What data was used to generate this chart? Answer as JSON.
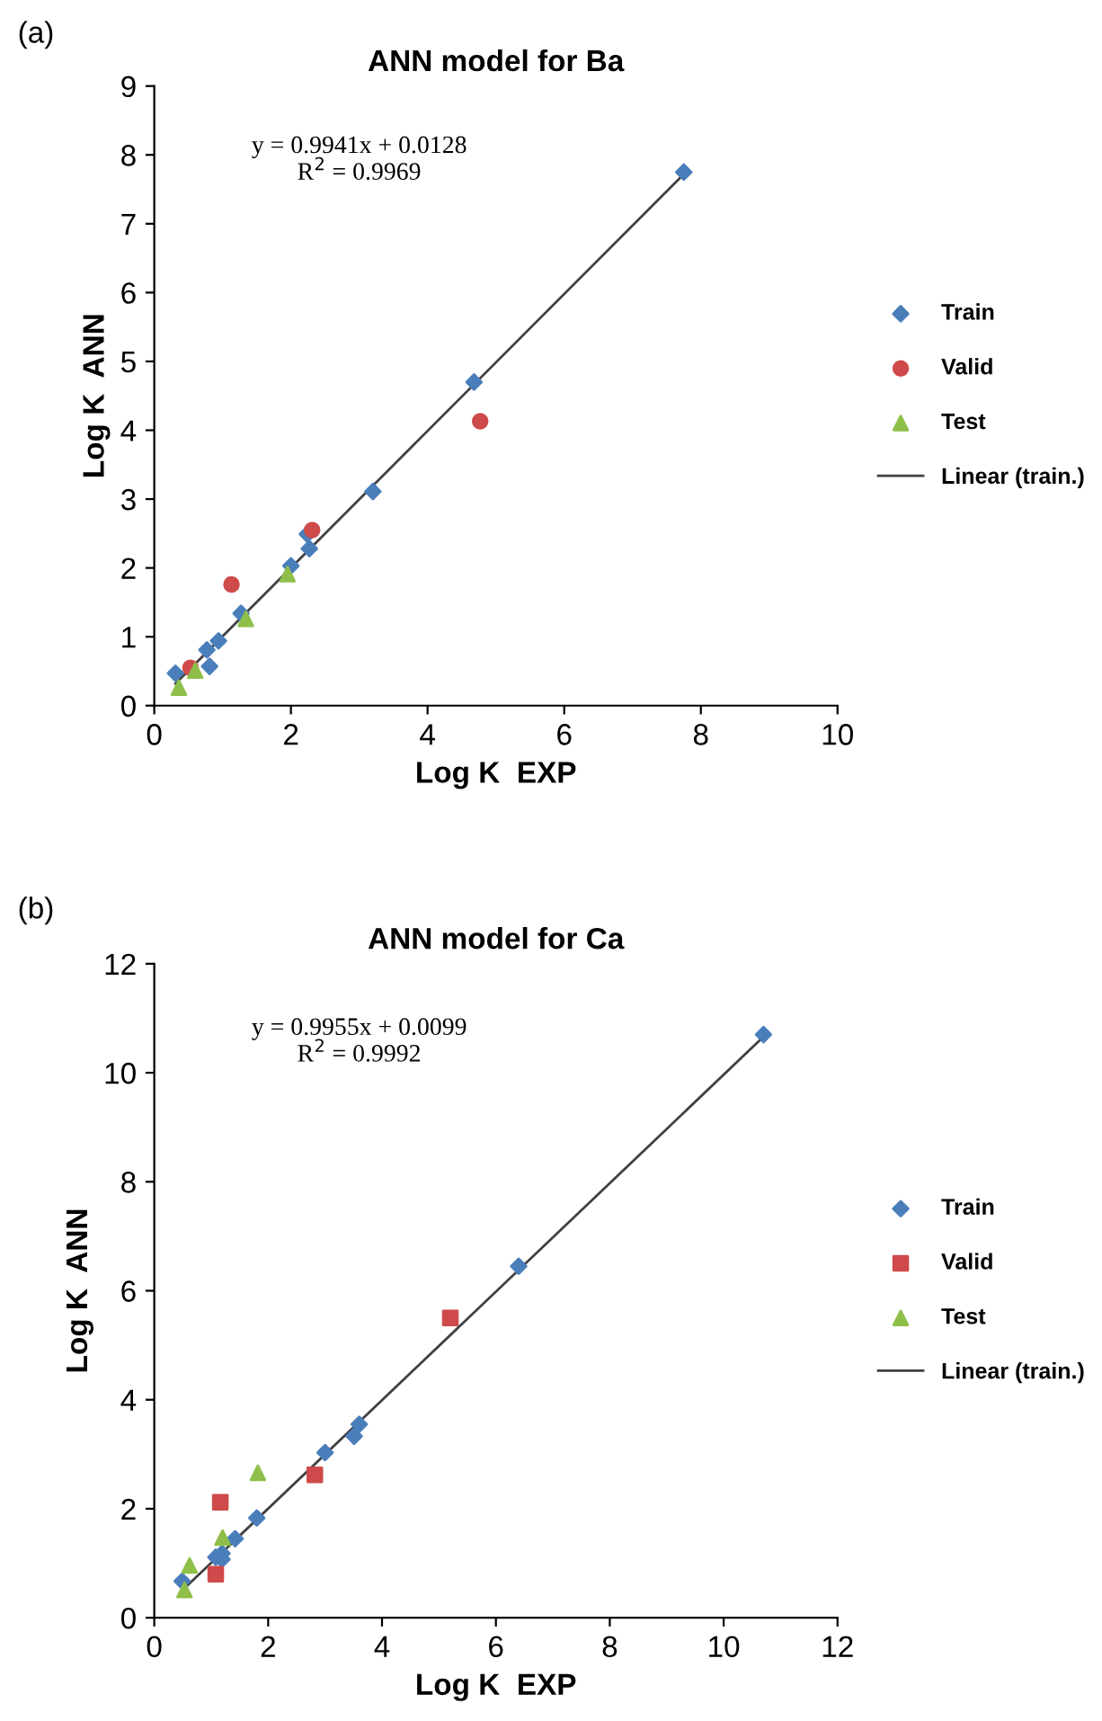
{
  "chart_data": [
    {
      "type": "scatter",
      "title": "ANN model for Ba",
      "xlabel": "Log K  EXP",
      "ylabel": "Log K  ANN",
      "annotations": [
        "(a)",
        "y = 0.9941x + 0.0128\nR$^{2}$ = 0.9969"
      ],
      "xlim": [
        0,
        10
      ],
      "xticks": [
        0,
        2,
        4,
        6,
        8,
        10
      ],
      "ylim": [
        0,
        9
      ],
      "yticks": [
        0,
        1,
        2,
        3,
        4,
        5,
        6,
        7,
        8,
        9
      ],
      "grid": false,
      "legend": "right",
      "series": [
        {
          "name": "Train",
          "type": "scatter",
          "marker": "diamond",
          "color": "#4a7ebb",
          "x": [
            0.31,
            0.77,
            0.81,
            0.94,
            1.27,
            2.0,
            2.24,
            2.27,
            3.2,
            4.68,
            7.75
          ],
          "values": [
            0.47,
            0.81,
            0.57,
            0.94,
            1.34,
            2.03,
            2.49,
            2.28,
            3.11,
            4.7,
            7.75
          ]
        },
        {
          "name": "Valid",
          "type": "scatter",
          "marker": "circle",
          "color": "#cf4a4a",
          "x": [
            0.53,
            1.13,
            2.31,
            4.77
          ],
          "values": [
            0.55,
            1.76,
            2.55,
            4.13
          ]
        },
        {
          "name": "Test",
          "type": "scatter",
          "marker": "triangle",
          "color": "#8fbf4a",
          "x": [
            0.36,
            0.6,
            1.34,
            1.95
          ],
          "values": [
            0.26,
            0.51,
            1.26,
            1.91
          ]
        },
        {
          "name": "Linear (train.)",
          "type": "line",
          "marker": "none",
          "color": "#404040",
          "x": [
            0.31,
            7.75
          ],
          "values": [
            0.32,
            7.72
          ]
        }
      ]
    },
    {
      "type": "scatter",
      "title": "ANN model for Ca",
      "xlabel": "Log K  EXP",
      "ylabel": "Log K  ANN",
      "annotations": [
        "(b)",
        "y = 0.9955x + 0.0099\nR$^{2}$ = 0.9992"
      ],
      "xlim": [
        0,
        12
      ],
      "xticks": [
        0,
        2,
        4,
        6,
        8,
        10,
        12
      ],
      "ylim": [
        0,
        12
      ],
      "yticks": [
        0,
        2,
        4,
        6,
        8,
        10,
        12
      ],
      "grid": false,
      "legend": "right",
      "series": [
        {
          "name": "Train",
          "type": "scatter",
          "marker": "diamond",
          "color": "#4a7ebb",
          "x": [
            0.49,
            1.08,
            1.19,
            1.19,
            1.42,
            1.8,
            3.0,
            3.51,
            3.6,
            6.4,
            10.7
          ],
          "values": [
            0.67,
            1.11,
            1.18,
            1.07,
            1.45,
            1.83,
            3.03,
            3.33,
            3.55,
            6.45,
            10.7
          ]
        },
        {
          "name": "Valid",
          "type": "scatter",
          "marker": "square",
          "color": "#cf4a4a",
          "x": [
            1.08,
            1.16,
            2.82,
            5.2
          ],
          "values": [
            0.8,
            2.12,
            2.62,
            5.5
          ]
        },
        {
          "name": "Test",
          "type": "scatter",
          "marker": "triangle",
          "color": "#8fbf4a",
          "x": [
            0.53,
            0.62,
            1.2,
            1.82
          ],
          "values": [
            0.51,
            0.96,
            1.47,
            2.66
          ]
        },
        {
          "name": "Linear (train.)",
          "type": "line",
          "marker": "none",
          "color": "#404040",
          "x": [
            0.49,
            10.7
          ],
          "values": [
            0.5,
            10.66
          ]
        }
      ]
    }
  ]
}
